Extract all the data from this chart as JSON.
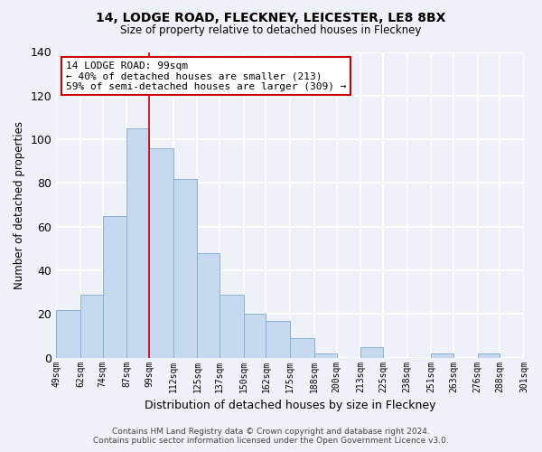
{
  "title": "14, LODGE ROAD, FLECKNEY, LEICESTER, LE8 8BX",
  "subtitle": "Size of property relative to detached houses in Fleckney",
  "xlabel": "Distribution of detached houses by size in Fleckney",
  "ylabel": "Number of detached properties",
  "footer_line1": "Contains HM Land Registry data © Crown copyright and database right 2024.",
  "footer_line2": "Contains public sector information licensed under the Open Government Licence v3.0.",
  "bin_edges": [
    49,
    62,
    74,
    87,
    99,
    112,
    125,
    137,
    150,
    162,
    175,
    188,
    200,
    213,
    225,
    238,
    251,
    263,
    276,
    288,
    301
  ],
  "bar_heights": [
    22,
    29,
    65,
    105,
    96,
    82,
    48,
    29,
    20,
    17,
    9,
    2,
    0,
    5,
    0,
    0,
    2,
    0,
    2,
    0
  ],
  "bar_color": "#c5d8f0",
  "bar_edgecolor": "#8ab0d0",
  "vline_x": 99,
  "vline_color": "#cc0000",
  "annotation_title": "14 LODGE ROAD: 99sqm",
  "annotation_line1": "← 40% of detached houses are smaller (213)",
  "annotation_line2": "59% of semi-detached houses are larger (309) →",
  "annotation_box_facecolor": "#ffffff",
  "annotation_box_edgecolor": "#cc0000",
  "ylim": [
    0,
    140
  ],
  "xtick_labels": [
    "49sqm",
    "62sqm",
    "74sqm",
    "87sqm",
    "99sqm",
    "112sqm",
    "125sqm",
    "137sqm",
    "150sqm",
    "162sqm",
    "175sqm",
    "188sqm",
    "200sqm",
    "213sqm",
    "225sqm",
    "238sqm",
    "251sqm",
    "263sqm",
    "276sqm",
    "288sqm",
    "301sqm"
  ],
  "background_color": "#eef2f8",
  "grid_color": "#ffffff",
  "yticks": [
    0,
    20,
    40,
    60,
    80,
    100,
    120,
    140
  ]
}
